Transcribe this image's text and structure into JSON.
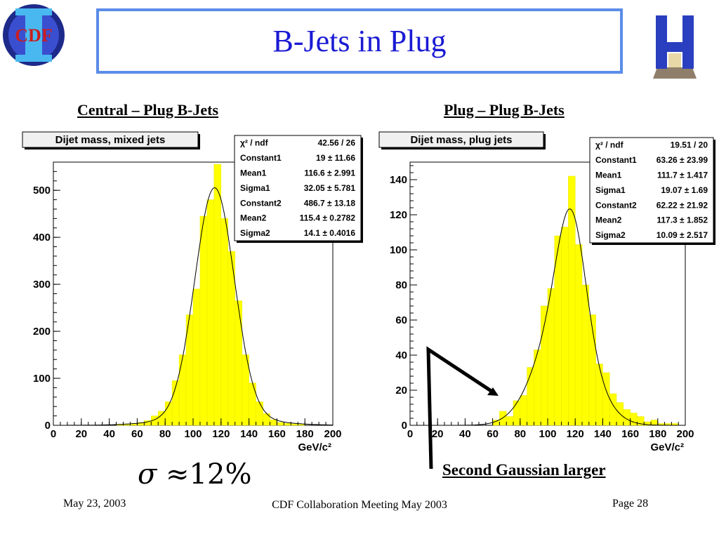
{
  "slide": {
    "title": "B-Jets in Plug",
    "left_subtitle": "Central – Plug B-Jets",
    "right_subtitle": "Plug – Plug B-Jets",
    "sigma_formula": {
      "symbol": "σ",
      "relation": "≈",
      "value": "12%"
    },
    "annotation": "Second Gaussian larger",
    "footer": {
      "date": "May 23, 2003",
      "meeting": "CDF Collaboration Meeting May 2003",
      "page": "Page 28"
    },
    "logos": {
      "left": "CDF",
      "right": "H"
    },
    "colors": {
      "title": "#1a1ad4",
      "title_border": "#5b8ce8",
      "histogram_fill": "#ffff00",
      "arrow": "#000000"
    }
  },
  "chart_data": [
    {
      "type": "bar",
      "title": "Dijet mass, mixed jets",
      "xlabel": "GeV/c²",
      "xlim": [
        0,
        200
      ],
      "ylim": [
        0,
        560
      ],
      "xticks": [
        "0",
        "20",
        "40",
        "60",
        "80",
        "100",
        "120",
        "140",
        "160",
        "180",
        "200"
      ],
      "yticks": [
        "0",
        "100",
        "200",
        "300",
        "400",
        "500"
      ],
      "bin_width": 5,
      "bins": [
        {
          "x": 45,
          "y": 2
        },
        {
          "x": 50,
          "y": 3
        },
        {
          "x": 55,
          "y": 4
        },
        {
          "x": 60,
          "y": 6
        },
        {
          "x": 65,
          "y": 10
        },
        {
          "x": 70,
          "y": 20
        },
        {
          "x": 75,
          "y": 30
        },
        {
          "x": 80,
          "y": 50
        },
        {
          "x": 85,
          "y": 95
        },
        {
          "x": 90,
          "y": 150
        },
        {
          "x": 95,
          "y": 235
        },
        {
          "x": 100,
          "y": 290
        },
        {
          "x": 105,
          "y": 445
        },
        {
          "x": 110,
          "y": 480
        },
        {
          "x": 115,
          "y": 555
        },
        {
          "x": 120,
          "y": 440
        },
        {
          "x": 125,
          "y": 370
        },
        {
          "x": 130,
          "y": 265
        },
        {
          "x": 135,
          "y": 150
        },
        {
          "x": 140,
          "y": 90
        },
        {
          "x": 145,
          "y": 50
        },
        {
          "x": 150,
          "y": 25
        },
        {
          "x": 155,
          "y": 12
        },
        {
          "x": 160,
          "y": 6
        },
        {
          "x": 165,
          "y": 4
        },
        {
          "x": 170,
          "y": 3
        },
        {
          "x": 175,
          "y": 2
        }
      ],
      "fit": {
        "constant1": 19,
        "mean1": 116.6,
        "sigma1": 32.05,
        "constant2": 486.7,
        "mean2": 115.4,
        "sigma2": 14.1
      },
      "stats_box": [
        {
          "label": "χ² / ndf",
          "value": "42.56 / 26"
        },
        {
          "label": "Constant1",
          "value": "19 ± 11.66"
        },
        {
          "label": "Mean1",
          "value": "116.6 ± 2.991"
        },
        {
          "label": "Sigma1",
          "value": "32.05 ± 5.781"
        },
        {
          "label": "Constant2",
          "value": "486.7 ± 13.18"
        },
        {
          "label": "Mean2",
          "value": "115.4 ± 0.2782"
        },
        {
          "label": "Sigma2",
          "value": "14.1 ± 0.4016"
        }
      ]
    },
    {
      "type": "bar",
      "title": "Dijet mass, plug jets",
      "xlabel": "GeV/c²",
      "xlim": [
        0,
        200
      ],
      "ylim": [
        0,
        150
      ],
      "xticks": [
        "0",
        "20",
        "40",
        "60",
        "80",
        "100",
        "120",
        "140",
        "160",
        "180",
        "200"
      ],
      "yticks": [
        "0",
        "20",
        "40",
        "60",
        "80",
        "100",
        "120",
        "140"
      ],
      "bin_width": 5,
      "bins": [
        {
          "x": 60,
          "y": 3
        },
        {
          "x": 65,
          "y": 8
        },
        {
          "x": 70,
          "y": 5
        },
        {
          "x": 75,
          "y": 14
        },
        {
          "x": 80,
          "y": 17
        },
        {
          "x": 85,
          "y": 33
        },
        {
          "x": 90,
          "y": 43
        },
        {
          "x": 95,
          "y": 68
        },
        {
          "x": 100,
          "y": 78
        },
        {
          "x": 105,
          "y": 108
        },
        {
          "x": 110,
          "y": 113
        },
        {
          "x": 115,
          "y": 142
        },
        {
          "x": 120,
          "y": 103
        },
        {
          "x": 125,
          "y": 80
        },
        {
          "x": 130,
          "y": 63
        },
        {
          "x": 135,
          "y": 35
        },
        {
          "x": 140,
          "y": 30
        },
        {
          "x": 145,
          "y": 18
        },
        {
          "x": 150,
          "y": 13
        },
        {
          "x": 155,
          "y": 9
        },
        {
          "x": 160,
          "y": 7
        },
        {
          "x": 165,
          "y": 5
        },
        {
          "x": 170,
          "y": 2
        },
        {
          "x": 175,
          "y": 3
        },
        {
          "x": 180,
          "y": 1
        },
        {
          "x": 185,
          "y": 1
        },
        {
          "x": 190,
          "y": 1
        }
      ],
      "fit": {
        "constant1": 63.26,
        "mean1": 111.7,
        "sigma1": 19.07,
        "constant2": 62.22,
        "mean2": 117.3,
        "sigma2": 10.09
      },
      "stats_box": [
        {
          "label": "χ² / ndf",
          "value": "19.51 / 20"
        },
        {
          "label": "Constant1",
          "value": "63.26 ± 23.99"
        },
        {
          "label": "Mean1",
          "value": "111.7 ± 1.417"
        },
        {
          "label": "Sigma1",
          "value": "19.07 ± 1.69"
        },
        {
          "label": "Constant2",
          "value": "62.22 ± 21.92"
        },
        {
          "label": "Mean2",
          "value": "117.3 ± 1.852"
        },
        {
          "label": "Sigma2",
          "value": "10.09 ± 2.517"
        }
      ]
    }
  ]
}
